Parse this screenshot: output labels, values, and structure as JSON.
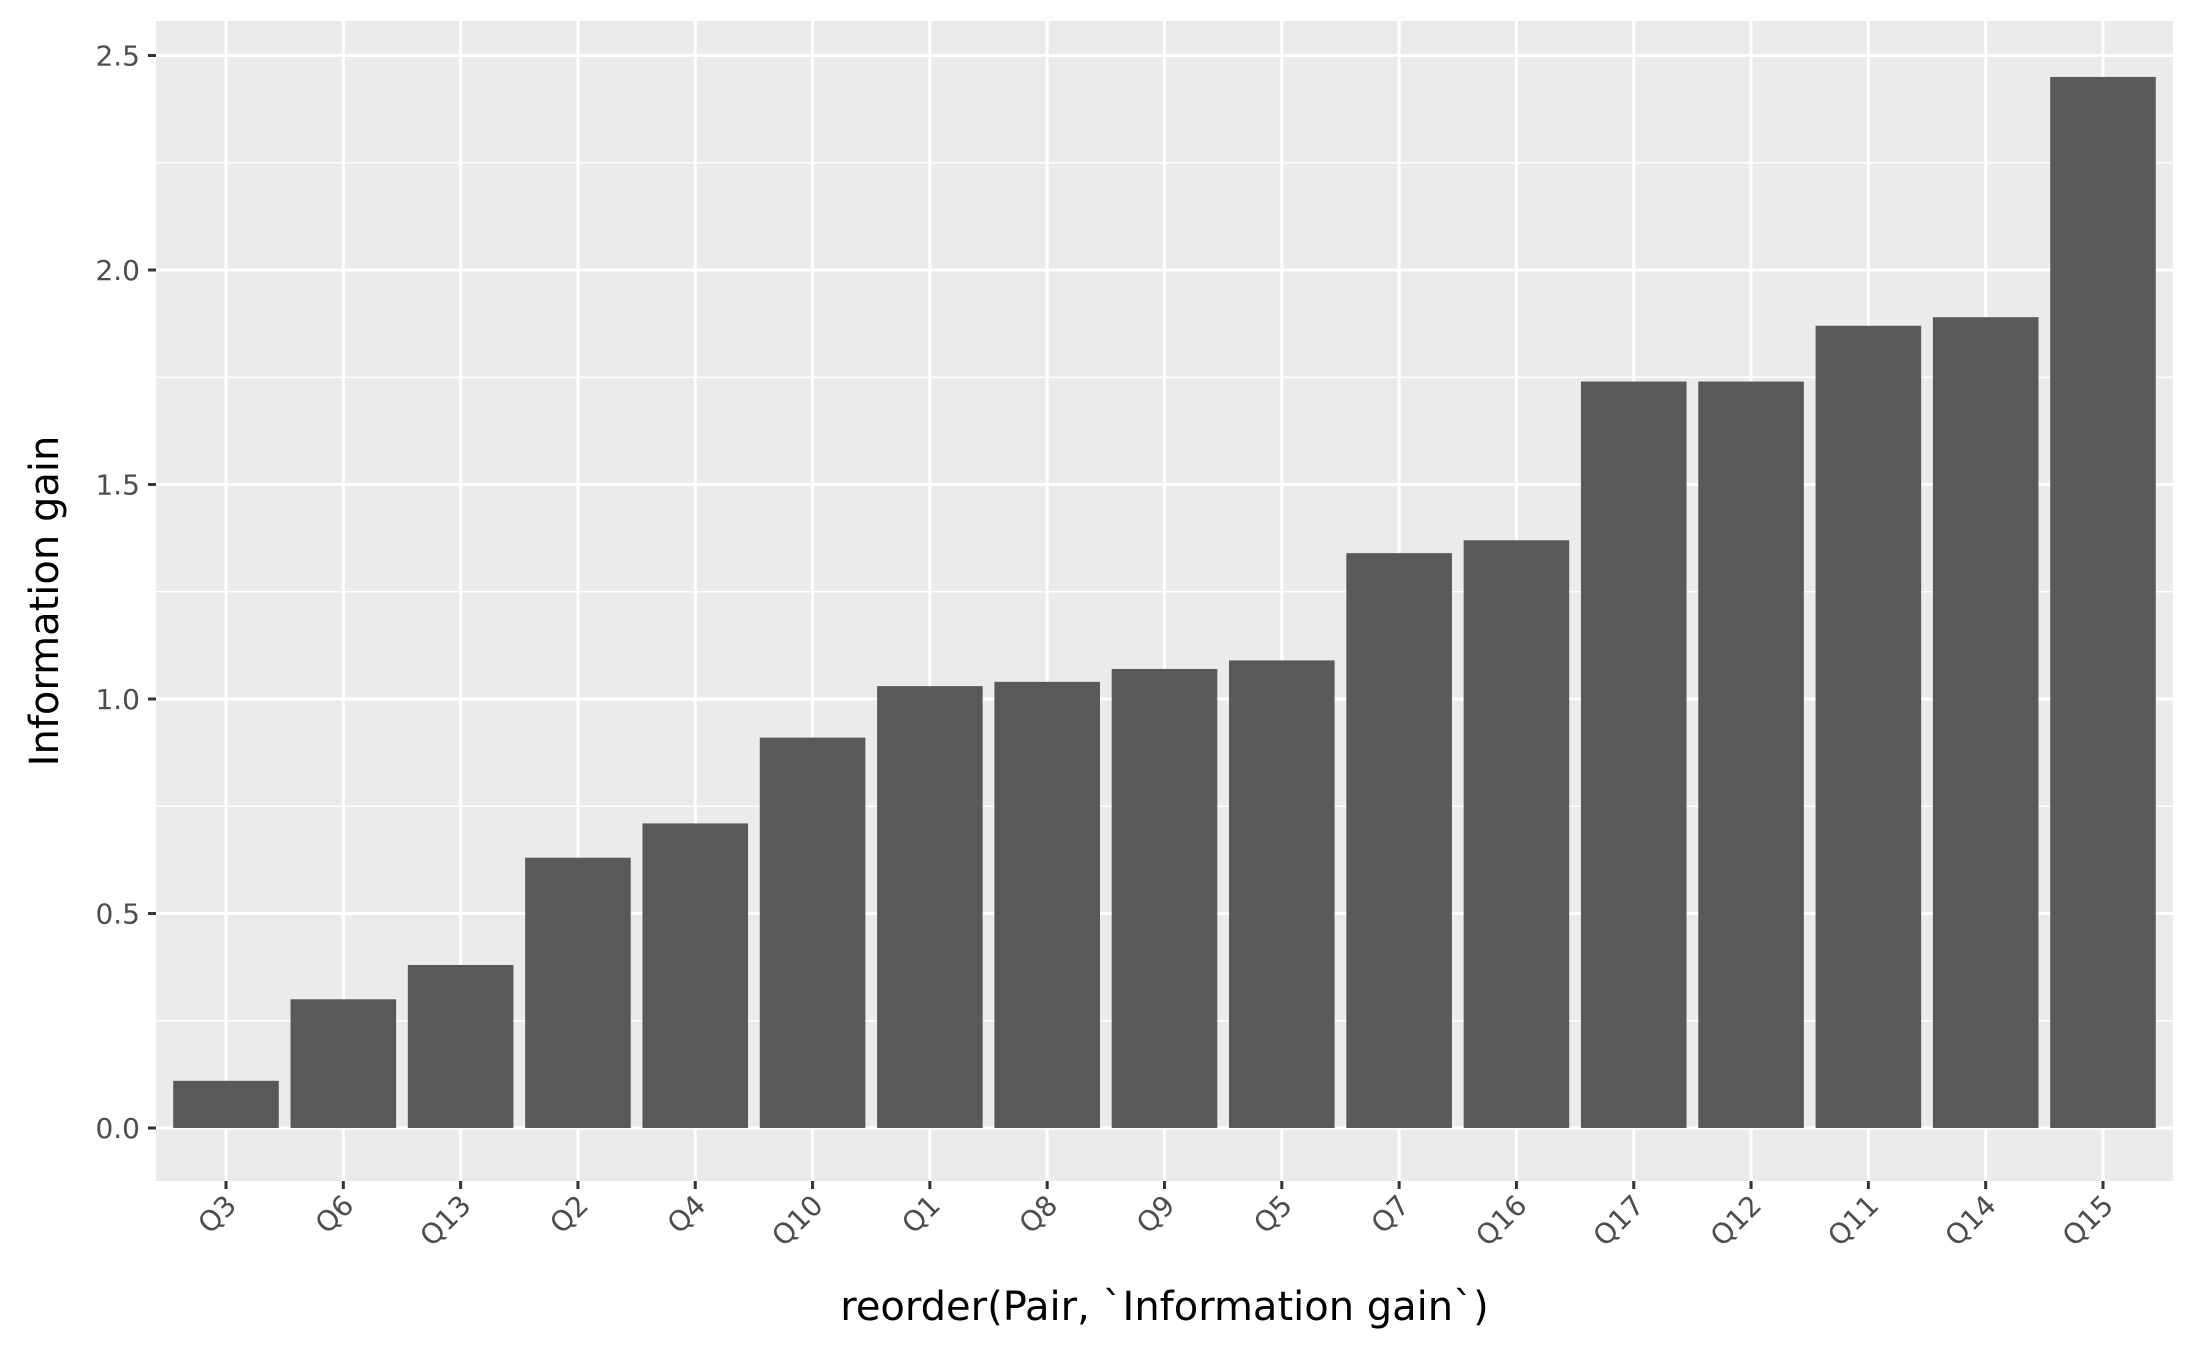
{
  "colors": {
    "panel_background": "#ebebeb",
    "grid_major": "#ffffff",
    "bar_fill": "#595959",
    "tick_text": "#4d4d4d",
    "axis_title": "#000000"
  },
  "chart_data": {
    "type": "bar",
    "title": "",
    "xlabel": "reorder(Pair, `Information gain`)",
    "ylabel": "Information gain",
    "categories": [
      "Q3",
      "Q6",
      "Q13",
      "Q2",
      "Q4",
      "Q10",
      "Q1",
      "Q8",
      "Q9",
      "Q5",
      "Q7",
      "Q16",
      "Q17",
      "Q12",
      "Q11",
      "Q14",
      "Q15"
    ],
    "values": [
      0.11,
      0.3,
      0.38,
      0.63,
      0.71,
      0.91,
      1.03,
      1.04,
      1.07,
      1.09,
      1.34,
      1.37,
      1.74,
      1.74,
      1.87,
      1.89,
      2.45
    ],
    "ylim": [
      -0.12,
      2.58
    ],
    "yticks": [
      0.0,
      0.5,
      1.0,
      1.5,
      2.0,
      2.5
    ],
    "ytick_labels": [
      "0.0",
      "0.5",
      "1.0",
      "1.5",
      "2.0",
      "2.5"
    ],
    "grid": true,
    "legend": "none"
  }
}
